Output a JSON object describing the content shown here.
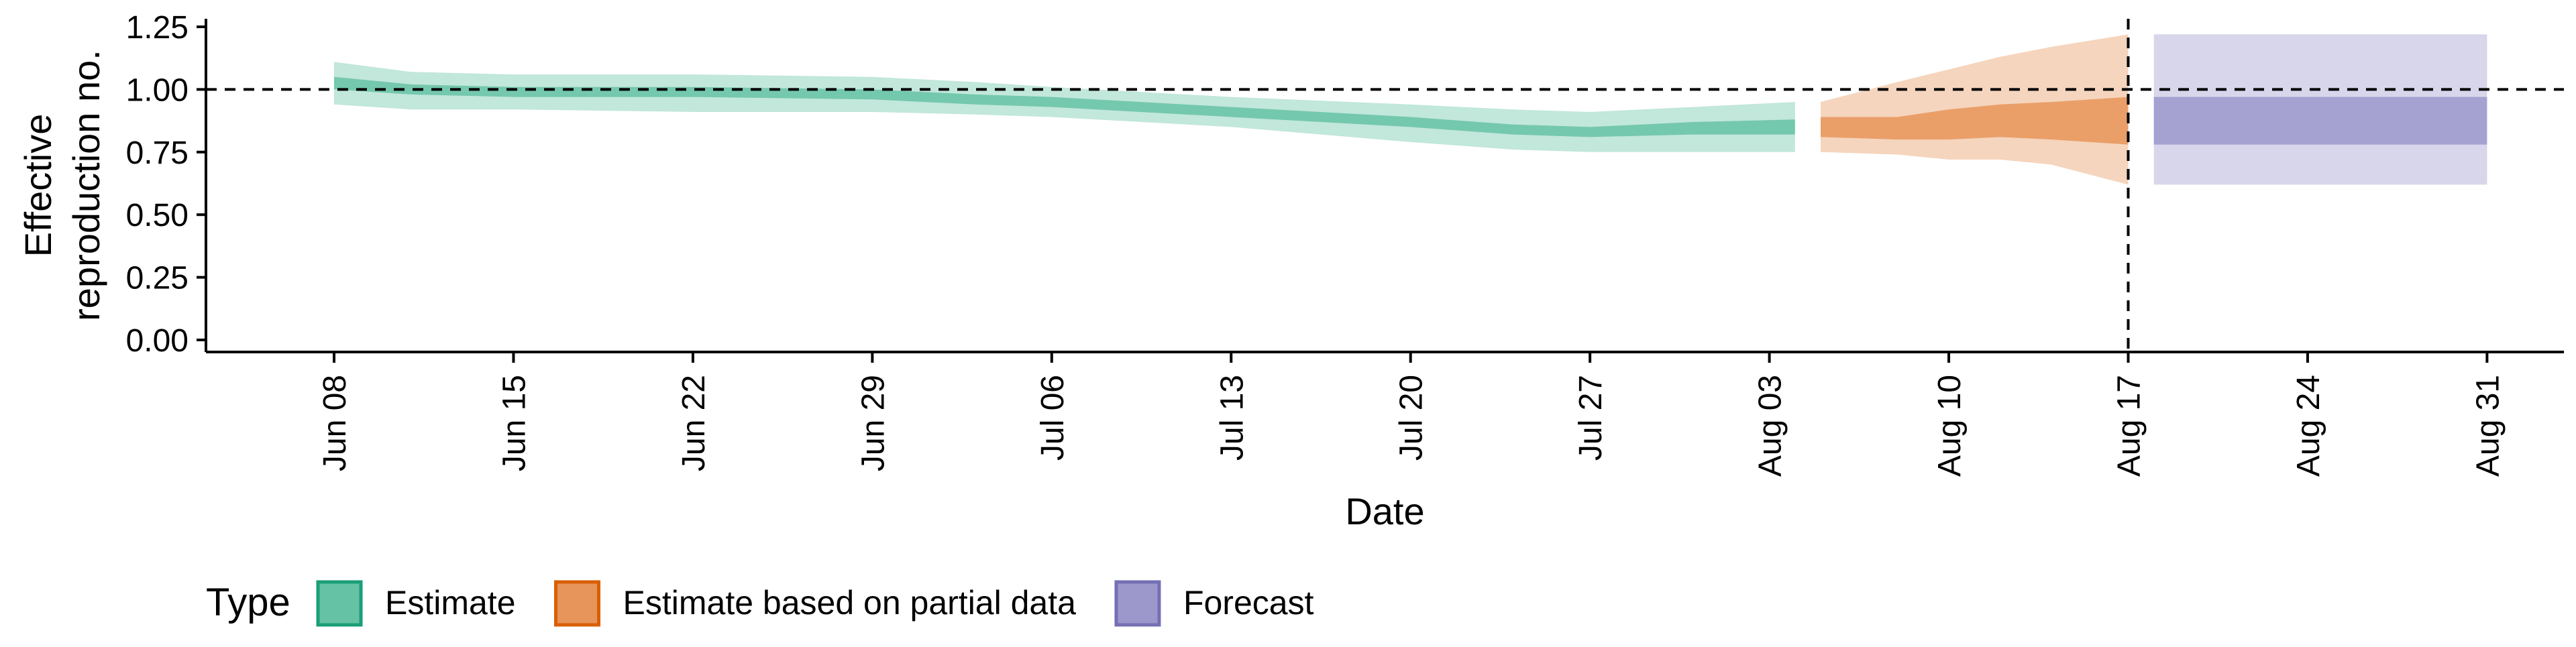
{
  "chart_data": {
    "type": "area",
    "xlabel": "Date",
    "ylabel": [
      "Effective",
      "reproduction no."
    ],
    "ylim": [
      0,
      1.25
    ],
    "yticks": [
      "0.00",
      "0.25",
      "0.50",
      "0.75",
      "1.00",
      "1.25"
    ],
    "xlim": [
      "2020-06-03",
      "2020-09-03"
    ],
    "xticks": [
      {
        "date": "2020-06-08",
        "label": "Jun 08"
      },
      {
        "date": "2020-06-15",
        "label": "Jun 15"
      },
      {
        "date": "2020-06-22",
        "label": "Jun 22"
      },
      {
        "date": "2020-06-29",
        "label": "Jun 29"
      },
      {
        "date": "2020-07-06",
        "label": "Jul 06"
      },
      {
        "date": "2020-07-13",
        "label": "Jul 13"
      },
      {
        "date": "2020-07-20",
        "label": "Jul 20"
      },
      {
        "date": "2020-07-27",
        "label": "Jul 27"
      },
      {
        "date": "2020-08-03",
        "label": "Aug 03"
      },
      {
        "date": "2020-08-10",
        "label": "Aug 10"
      },
      {
        "date": "2020-08-17",
        "label": "Aug 17"
      },
      {
        "date": "2020-08-24",
        "label": "Aug 24"
      },
      {
        "date": "2020-08-31",
        "label": "Aug 31"
      }
    ],
    "hline": 1.0,
    "vline": "2020-08-17",
    "grid": false,
    "legend_position": "bottom-left",
    "legend_title": "Type",
    "series": [
      {
        "name": "Estimate",
        "color": "#1b9e77",
        "fill": "#66c2a5",
        "points": [
          {
            "date": "2020-06-08",
            "lo90": 0.94,
            "lo50": 1.0,
            "hi50": 1.05,
            "hi90": 1.11
          },
          {
            "date": "2020-06-11",
            "lo90": 0.92,
            "lo50": 0.98,
            "hi50": 1.02,
            "hi90": 1.07
          },
          {
            "date": "2020-06-15",
            "lo90": 0.92,
            "lo50": 0.97,
            "hi50": 1.01,
            "hi90": 1.06
          },
          {
            "date": "2020-06-22",
            "lo90": 0.91,
            "lo50": 0.97,
            "hi50": 1.01,
            "hi90": 1.06
          },
          {
            "date": "2020-06-29",
            "lo90": 0.91,
            "lo50": 0.96,
            "hi50": 1.0,
            "hi90": 1.05
          },
          {
            "date": "2020-07-03",
            "lo90": 0.9,
            "lo50": 0.94,
            "hi50": 0.98,
            "hi90": 1.03
          },
          {
            "date": "2020-07-06",
            "lo90": 0.89,
            "lo50": 0.93,
            "hi50": 0.97,
            "hi90": 1.01
          },
          {
            "date": "2020-07-13",
            "lo90": 0.85,
            "lo50": 0.89,
            "hi50": 0.93,
            "hi90": 0.97
          },
          {
            "date": "2020-07-20",
            "lo90": 0.79,
            "lo50": 0.85,
            "hi50": 0.89,
            "hi90": 0.94
          },
          {
            "date": "2020-07-24",
            "lo90": 0.76,
            "lo50": 0.82,
            "hi50": 0.86,
            "hi90": 0.92
          },
          {
            "date": "2020-07-27",
            "lo90": 0.75,
            "lo50": 0.81,
            "hi50": 0.85,
            "hi90": 0.91
          },
          {
            "date": "2020-07-31",
            "lo90": 0.75,
            "lo50": 0.82,
            "hi50": 0.87,
            "hi90": 0.93
          },
          {
            "date": "2020-08-04",
            "lo90": 0.75,
            "lo50": 0.82,
            "hi50": 0.88,
            "hi90": 0.95
          }
        ]
      },
      {
        "name": "Estimate based on partial data",
        "color": "#d95f02",
        "fill": "#e7955b",
        "points": [
          {
            "date": "2020-08-05",
            "lo90": 0.75,
            "lo50": 0.81,
            "hi50": 0.89,
            "hi90": 0.95
          },
          {
            "date": "2020-08-08",
            "lo90": 0.74,
            "lo50": 0.8,
            "hi50": 0.89,
            "hi90": 1.03
          },
          {
            "date": "2020-08-10",
            "lo90": 0.72,
            "lo50": 0.8,
            "hi50": 0.92,
            "hi90": 1.08
          },
          {
            "date": "2020-08-12",
            "lo90": 0.72,
            "lo50": 0.81,
            "hi50": 0.94,
            "hi90": 1.13
          },
          {
            "date": "2020-08-14",
            "lo90": 0.7,
            "lo50": 0.8,
            "hi50": 0.95,
            "hi90": 1.17
          },
          {
            "date": "2020-08-17",
            "lo90": 0.62,
            "lo50": 0.78,
            "hi50": 0.97,
            "hi90": 1.22
          }
        ]
      },
      {
        "name": "Forecast",
        "color": "#7570b3",
        "fill": "#9c98cc",
        "points": [
          {
            "date": "2020-08-18",
            "lo90": 0.62,
            "lo50": 0.78,
            "hi50": 0.97,
            "hi90": 1.22
          },
          {
            "date": "2020-08-31",
            "lo90": 0.62,
            "lo50": 0.78,
            "hi50": 0.97,
            "hi90": 1.22
          }
        ]
      }
    ]
  }
}
